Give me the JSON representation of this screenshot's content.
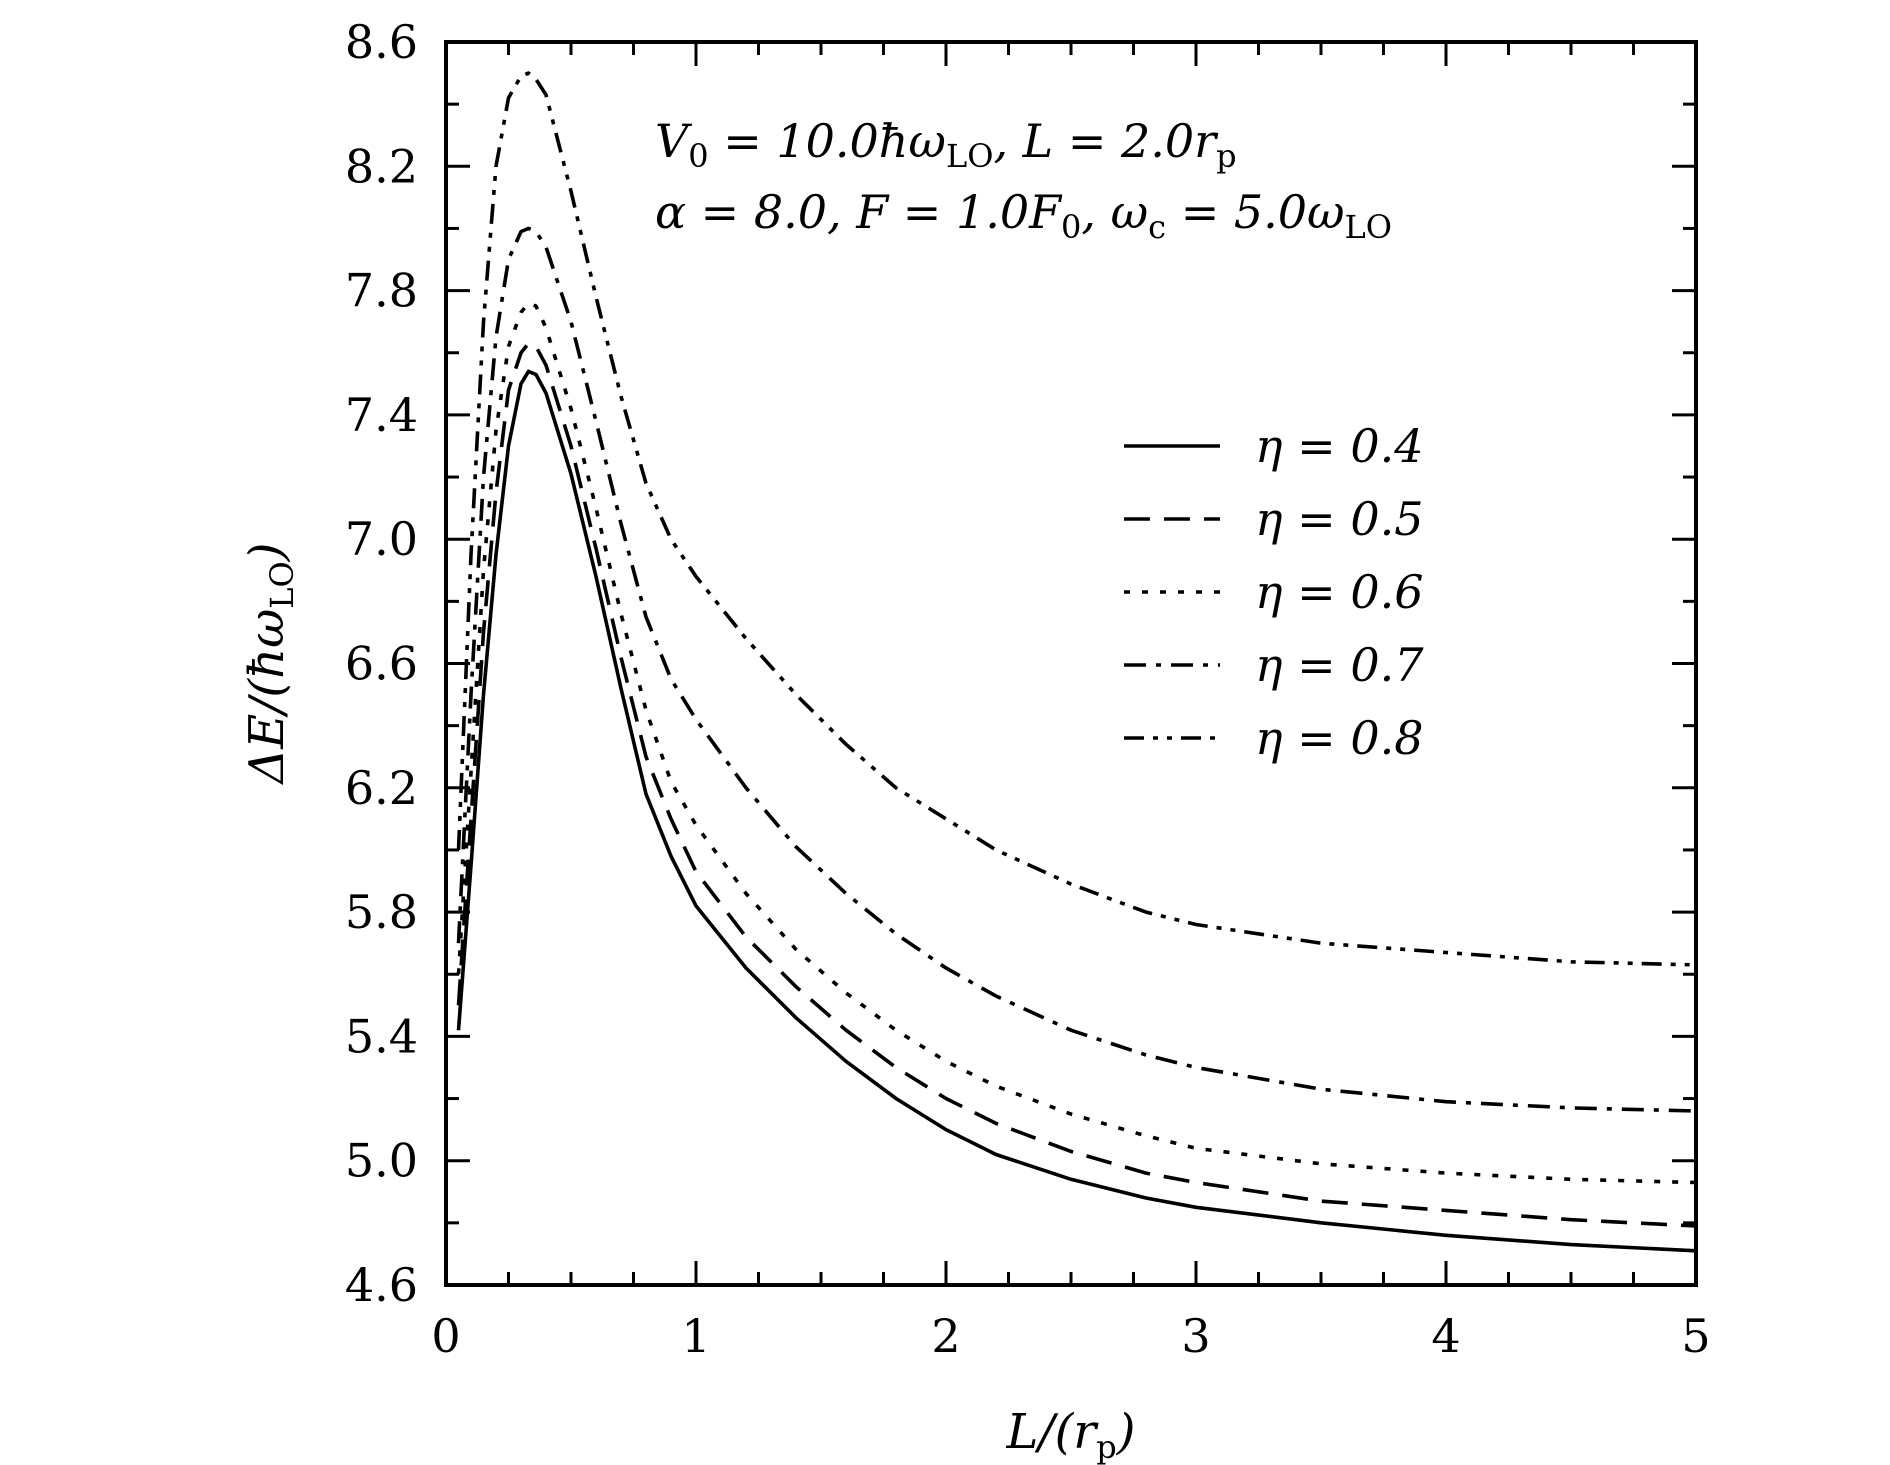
{
  "chart_data": {
    "type": "line",
    "xlabel": "L/(r_p)",
    "ylabel": "ΔE/(ħω_LO)",
    "xlim": [
      0,
      5
    ],
    "ylim": [
      4.6,
      8.6
    ],
    "xticks": [
      "0",
      "1",
      "2",
      "3",
      "4",
      "5"
    ],
    "yticks": [
      "4.6",
      "5.0",
      "5.4",
      "5.8",
      "6.2",
      "6.6",
      "7.0",
      "7.4",
      "7.8",
      "8.2",
      "8.6"
    ],
    "annotations": [
      "V₀ = 10.0ħω_LO, L = 2.0r_p",
      "α = 8.0, F = 1.0F₀, ω_c = 5.0ω_LO"
    ],
    "legend_position": "right-middle",
    "grid": false,
    "series": [
      {
        "name": "η = 0.4",
        "dash": "solid",
        "x": [
          0.05,
          0.1,
          0.15,
          0.2,
          0.25,
          0.3,
          0.33,
          0.36,
          0.4,
          0.5,
          0.6,
          0.7,
          0.8,
          0.9,
          1.0,
          1.2,
          1.4,
          1.6,
          1.8,
          2.0,
          2.2,
          2.5,
          2.8,
          3.0,
          3.5,
          4.0,
          4.5,
          5.0
        ],
        "y": [
          5.42,
          5.95,
          6.5,
          6.95,
          7.3,
          7.5,
          7.54,
          7.53,
          7.47,
          7.21,
          6.88,
          6.52,
          6.18,
          5.98,
          5.82,
          5.62,
          5.46,
          5.32,
          5.2,
          5.1,
          5.02,
          4.94,
          4.88,
          4.85,
          4.8,
          4.76,
          4.73,
          4.71
        ]
      },
      {
        "name": "η = 0.5",
        "dash": "long-dash",
        "x": [
          0.05,
          0.1,
          0.15,
          0.2,
          0.25,
          0.3,
          0.33,
          0.36,
          0.4,
          0.5,
          0.6,
          0.7,
          0.8,
          0.9,
          1.0,
          1.2,
          1.4,
          1.6,
          1.8,
          2.0,
          2.2,
          2.5,
          2.8,
          3.0,
          3.5,
          4.0,
          4.5,
          5.0
        ],
        "y": [
          5.5,
          6.1,
          6.7,
          7.15,
          7.48,
          7.6,
          7.63,
          7.62,
          7.56,
          7.3,
          6.97,
          6.62,
          6.3,
          6.1,
          5.93,
          5.72,
          5.56,
          5.42,
          5.3,
          5.2,
          5.12,
          5.03,
          4.96,
          4.93,
          4.87,
          4.84,
          4.81,
          4.79
        ]
      },
      {
        "name": "η = 0.6",
        "dash": "dot",
        "x": [
          0.05,
          0.1,
          0.15,
          0.2,
          0.25,
          0.3,
          0.33,
          0.36,
          0.4,
          0.5,
          0.6,
          0.7,
          0.8,
          0.9,
          1.0,
          1.2,
          1.4,
          1.6,
          1.8,
          2.0,
          2.2,
          2.5,
          2.8,
          3.0,
          3.5,
          4.0,
          4.5,
          5.0
        ],
        "y": [
          5.6,
          6.25,
          6.9,
          7.35,
          7.62,
          7.73,
          7.76,
          7.75,
          7.68,
          7.42,
          7.1,
          6.76,
          6.45,
          6.22,
          6.08,
          5.86,
          5.68,
          5.54,
          5.42,
          5.32,
          5.24,
          5.15,
          5.08,
          5.04,
          4.99,
          4.96,
          4.94,
          4.93
        ]
      },
      {
        "name": "η = 0.7",
        "dash": "dash-dot",
        "x": [
          0.05,
          0.1,
          0.15,
          0.2,
          0.25,
          0.3,
          0.33,
          0.36,
          0.4,
          0.5,
          0.6,
          0.7,
          0.8,
          0.9,
          1.0,
          1.2,
          1.4,
          1.6,
          1.8,
          2.0,
          2.2,
          2.5,
          2.8,
          3.0,
          3.5,
          4.0,
          4.5,
          5.0
        ],
        "y": [
          5.7,
          6.5,
          7.2,
          7.65,
          7.9,
          7.99,
          8.0,
          7.99,
          7.94,
          7.7,
          7.38,
          7.05,
          6.75,
          6.55,
          6.42,
          6.2,
          6.01,
          5.86,
          5.73,
          5.62,
          5.53,
          5.42,
          5.34,
          5.3,
          5.23,
          5.19,
          5.17,
          5.16
        ]
      },
      {
        "name": "η = 0.8",
        "dash": "dash-dot-dot",
        "x": [
          0.05,
          0.1,
          0.15,
          0.2,
          0.25,
          0.3,
          0.33,
          0.36,
          0.4,
          0.5,
          0.6,
          0.7,
          0.8,
          0.9,
          1.0,
          1.2,
          1.4,
          1.6,
          1.8,
          2.0,
          2.2,
          2.5,
          2.8,
          3.0,
          3.5,
          4.0,
          4.5,
          5.0
        ],
        "y": [
          6.0,
          6.95,
          7.7,
          8.2,
          8.42,
          8.49,
          8.5,
          8.48,
          8.43,
          8.12,
          7.78,
          7.46,
          7.18,
          7.0,
          6.88,
          6.68,
          6.5,
          6.34,
          6.2,
          6.1,
          6.0,
          5.89,
          5.8,
          5.76,
          5.7,
          5.67,
          5.64,
          5.63
        ]
      }
    ]
  },
  "display": {
    "ylabel_prefix": "ΔE/(ħω",
    "ylabel_sub": "LO",
    "ylabel_suffix": ")",
    "xlabel_prefix": "L/(r",
    "xlabel_sub": "p",
    "xlabel_suffix": ")",
    "annot1": {
      "p1": "V",
      "p1sub": "0",
      "p2": " = 10.0ħω",
      "p2sub": "LO",
      "p3": ",  L = 2.0r",
      "p3sub": "p"
    },
    "annot2": {
      "p1": "α = 8.0,  F = 1.0F",
      "p1sub": "0",
      "p2": ",  ω",
      "p2sub": "c",
      "p3": " = 5.0ω",
      "p3sub": "LO"
    }
  }
}
